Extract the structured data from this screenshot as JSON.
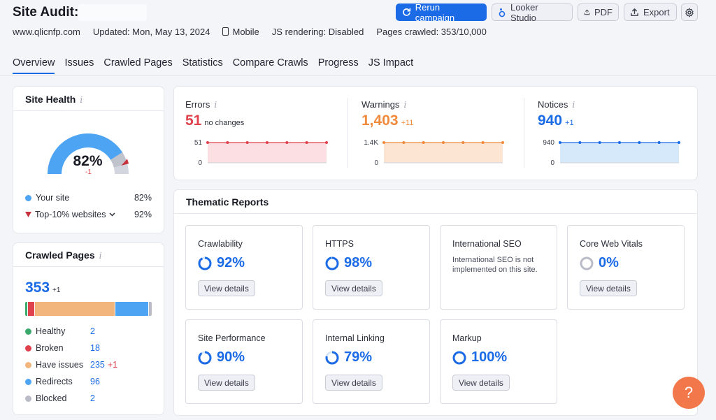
{
  "header": {
    "title": "Site Audit:",
    "domain": "www.qlicnfp.com",
    "updated": "Updated: Mon, May 13, 2024",
    "device": "Mobile",
    "js_rendering": "JS rendering: Disabled",
    "pages_crawled": "Pages crawled: 353/10,000"
  },
  "toolbar": {
    "rerun": "Rerun campaign",
    "looker": "Looker Studio",
    "pdf": "PDF",
    "export": "Export"
  },
  "tabs": [
    "Overview",
    "Issues",
    "Crawled Pages",
    "Statistics",
    "Compare Crawls",
    "Progress",
    "JS Impact"
  ],
  "site_health": {
    "title": "Site Health",
    "value": "82%",
    "delta": "-1",
    "percent": 82,
    "top_percent": 92,
    "your_site_label": "Your site",
    "your_site_value": "82%",
    "top_label": "Top-10% websites",
    "top_value": "92%"
  },
  "crawled_pages": {
    "title": "Crawled Pages",
    "total": "353",
    "total_delta": "+1",
    "rows": [
      {
        "label": "Healthy",
        "value": "2",
        "delta": "",
        "color": "#3aaa6d",
        "count": 2
      },
      {
        "label": "Broken",
        "value": "18",
        "delta": "",
        "color": "#e0424d",
        "count": 18
      },
      {
        "label": "Have issues",
        "value": "235",
        "delta": "+1",
        "color": "#f2b57c",
        "count": 235
      },
      {
        "label": "Redirects",
        "value": "96",
        "delta": "",
        "color": "#4ca4f2",
        "count": 96
      },
      {
        "label": "Blocked",
        "value": "2",
        "delta": "",
        "color": "#b9bcc6",
        "count": 2
      }
    ]
  },
  "metrics": [
    {
      "label": "Errors",
      "value": "51",
      "delta": "no changes",
      "color": "#e0424d",
      "fill": "#fbdfe2",
      "ytop": "51",
      "ybottom": "0"
    },
    {
      "label": "Warnings",
      "value": "1,403",
      "delta": "+11",
      "color": "#f08a3c",
      "fill": "#fde5d3",
      "ytop": "1.4K",
      "ybottom": "0"
    },
    {
      "label": "Notices",
      "value": "940",
      "delta": "+1",
      "color": "#1b6ae6",
      "fill": "#d6e9fb",
      "ytop": "940",
      "ybottom": "0"
    }
  ],
  "thematic": {
    "title": "Thematic Reports",
    "view_details": "View details",
    "reports": [
      {
        "name": "Crawlability",
        "value": "92%",
        "percent": 92,
        "note": ""
      },
      {
        "name": "HTTPS",
        "value": "98%",
        "percent": 98,
        "note": ""
      },
      {
        "name": "International SEO",
        "value": "",
        "percent": null,
        "note": "International SEO is not implemented on this site."
      },
      {
        "name": "Core Web Vitals",
        "value": "0%",
        "percent": 0,
        "note": ""
      },
      {
        "name": "Site Performance",
        "value": "90%",
        "percent": 90,
        "note": ""
      },
      {
        "name": "Internal Linking",
        "value": "79%",
        "percent": 79,
        "note": ""
      },
      {
        "name": "Markup",
        "value": "100%",
        "percent": 100,
        "note": ""
      }
    ]
  },
  "help": "?"
}
